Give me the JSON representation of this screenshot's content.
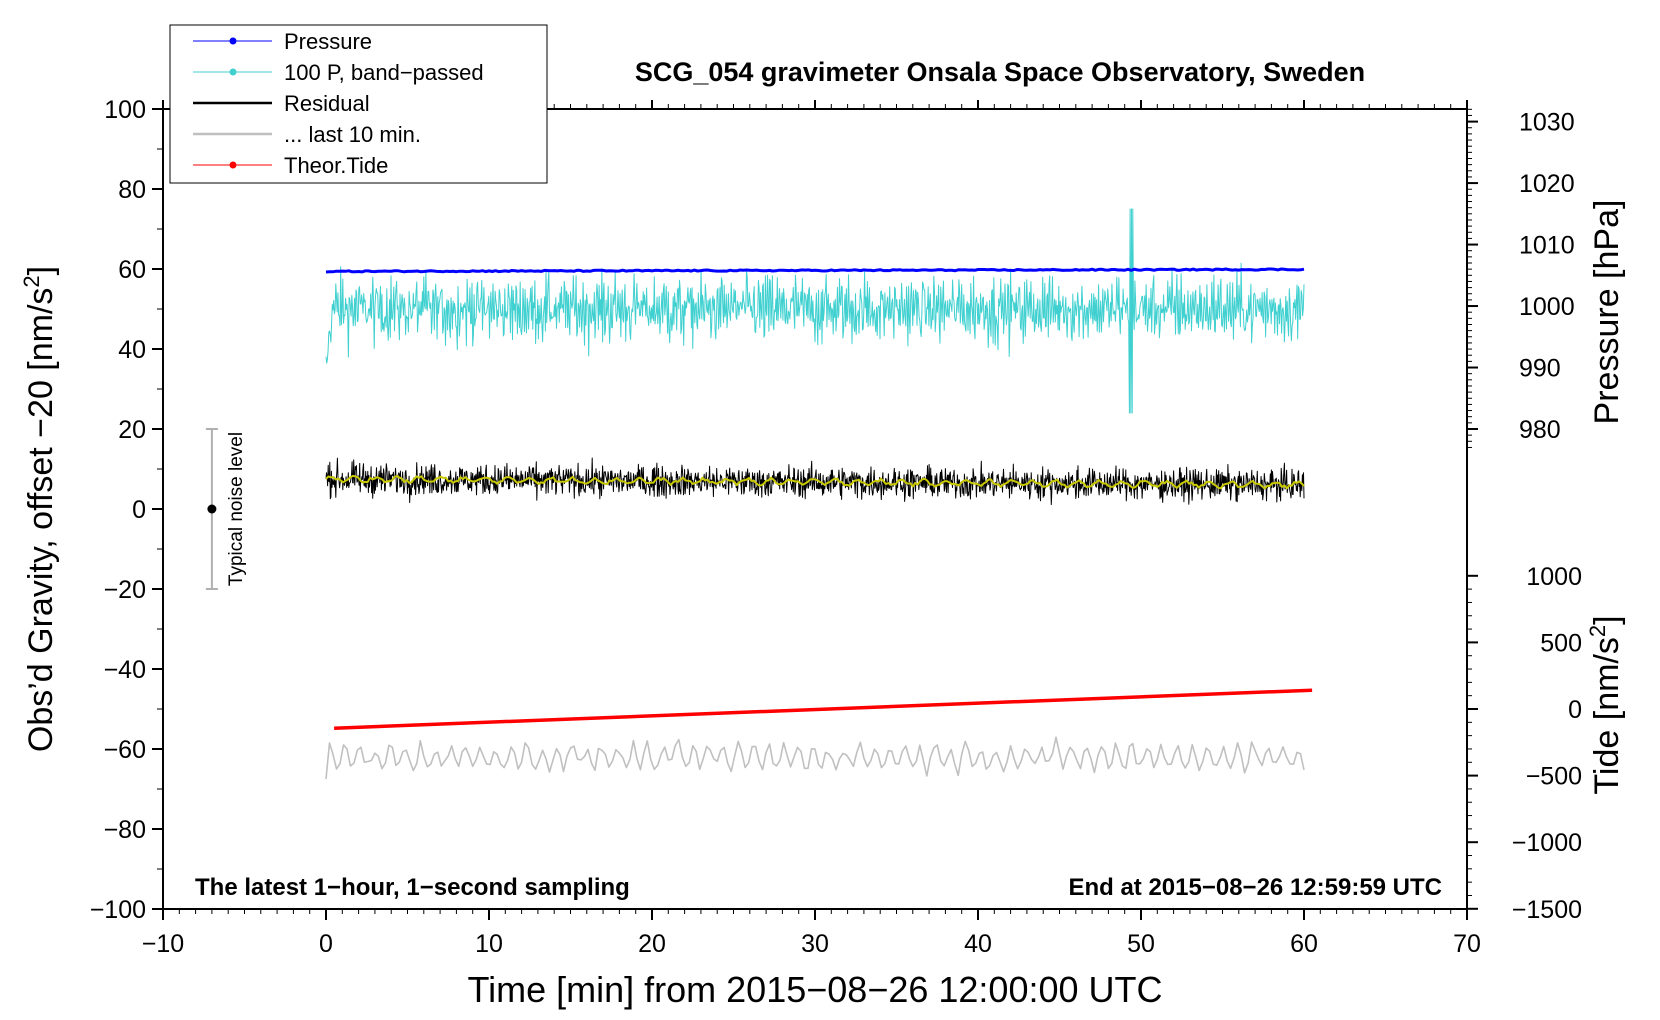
{
  "chart_data": {
    "type": "line",
    "title": "SCG_054 gravimeter Onsala Space Observatory, Sweden",
    "xlabel": "Time [min] from 2015−08−26 12:00:00 UTC",
    "ylabel_left": "Obs’d Gravity, offset −20 [nm/s",
    "ylabel_left_sup": "2",
    "ylabel_left_end": "]",
    "ylabel_right_pressure": "Pressure [hPa]",
    "ylabel_right_tide": "Tide [nm/s",
    "ylabel_right_tide_sup": "2",
    "ylabel_right_tide_end": "]",
    "xlim": [
      -10,
      70
    ],
    "ylim": [
      -100,
      100
    ],
    "x_ticks": [
      -10,
      0,
      10,
      20,
      30,
      40,
      50,
      60,
      70
    ],
    "x_tick_labels": [
      "−10",
      "0",
      "10",
      "20",
      "30",
      "40",
      "50",
      "60",
      "70"
    ],
    "y_ticks": [
      -100,
      -80,
      -60,
      -40,
      -20,
      0,
      20,
      40,
      60,
      80,
      100
    ],
    "y_tick_labels": [
      "−100",
      "−80",
      "−60",
      "−40",
      "−20",
      "0",
      "20",
      "40",
      "60",
      "80",
      "100"
    ],
    "pressure_axis": {
      "ticks": [
        980,
        990,
        1000,
        1010,
        1020,
        1030
      ],
      "tick_labels": [
        "980",
        "990",
        "1000",
        "1010",
        "1020",
        "1030"
      ],
      "left_value_at_980": 20,
      "left_units_per_hpa": 1.537
    },
    "tide_axis": {
      "ticks": [
        -1500,
        -1000,
        -500,
        0,
        500,
        1000
      ],
      "tick_labels": [
        "−1500",
        "−1000",
        "−500",
        "0",
        "500",
        "1000"
      ],
      "left_value_at_0": -50,
      "left_units_per_unit": 0.0333
    },
    "legend": {
      "position": "top-left",
      "entries": [
        {
          "label": "Pressure",
          "color": "#0000ff",
          "marker": true
        },
        {
          "label": "100 P, band−passed",
          "color": "#40d0d0",
          "marker": true
        },
        {
          "label": "Residual",
          "color": "#000000",
          "marker": false
        },
        {
          "label": "... last 10 min.",
          "color": "#c0c0c0",
          "marker": false
        },
        {
          "label": "Theor.Tide",
          "color": "#ff0000",
          "marker": true
        }
      ]
    },
    "series": [
      {
        "name": "Pressure",
        "color": "#0000ff",
        "x_range": [
          0,
          60
        ],
        "y_start": 59.4,
        "y_end": 59.9,
        "noise": 0.3
      },
      {
        "name": "100 P, band−passed",
        "color": "#40d0d0",
        "x_range": [
          0,
          60
        ],
        "y_center": 50,
        "amplitude": 6,
        "min": 24,
        "max": 75
      },
      {
        "name": "Residual",
        "color": "#000000",
        "x_range": [
          0,
          60
        ],
        "y_start": 7.5,
        "y_end": 6,
        "amplitude": 3.5,
        "min": 0,
        "max": 15
      },
      {
        "name": "Residual (smoothed)",
        "color": "#c8c800",
        "x_range": [
          0,
          60
        ],
        "y_start": 7.5,
        "y_end": 6
      },
      {
        "name": "... last 10 min.",
        "color": "#c0c0c0",
        "x_range": [
          0,
          60
        ],
        "y_center": -62,
        "amplitude": 3,
        "min": -68.5,
        "max": -55.5
      },
      {
        "name": "Theor.Tide",
        "color": "#ff0000",
        "x_range": [
          0.5,
          60.5
        ],
        "y_start": -54.8,
        "y_end": -45.3
      }
    ],
    "noise_bar": {
      "x": -7,
      "y_low": -20,
      "y_high": 20,
      "y_center": 0,
      "label": "Typical noise level"
    },
    "annotations": {
      "bottom_left": "The latest 1−hour, 1−second sampling",
      "bottom_right": "End at 2015−08−26 12:59:59 UTC"
    }
  }
}
